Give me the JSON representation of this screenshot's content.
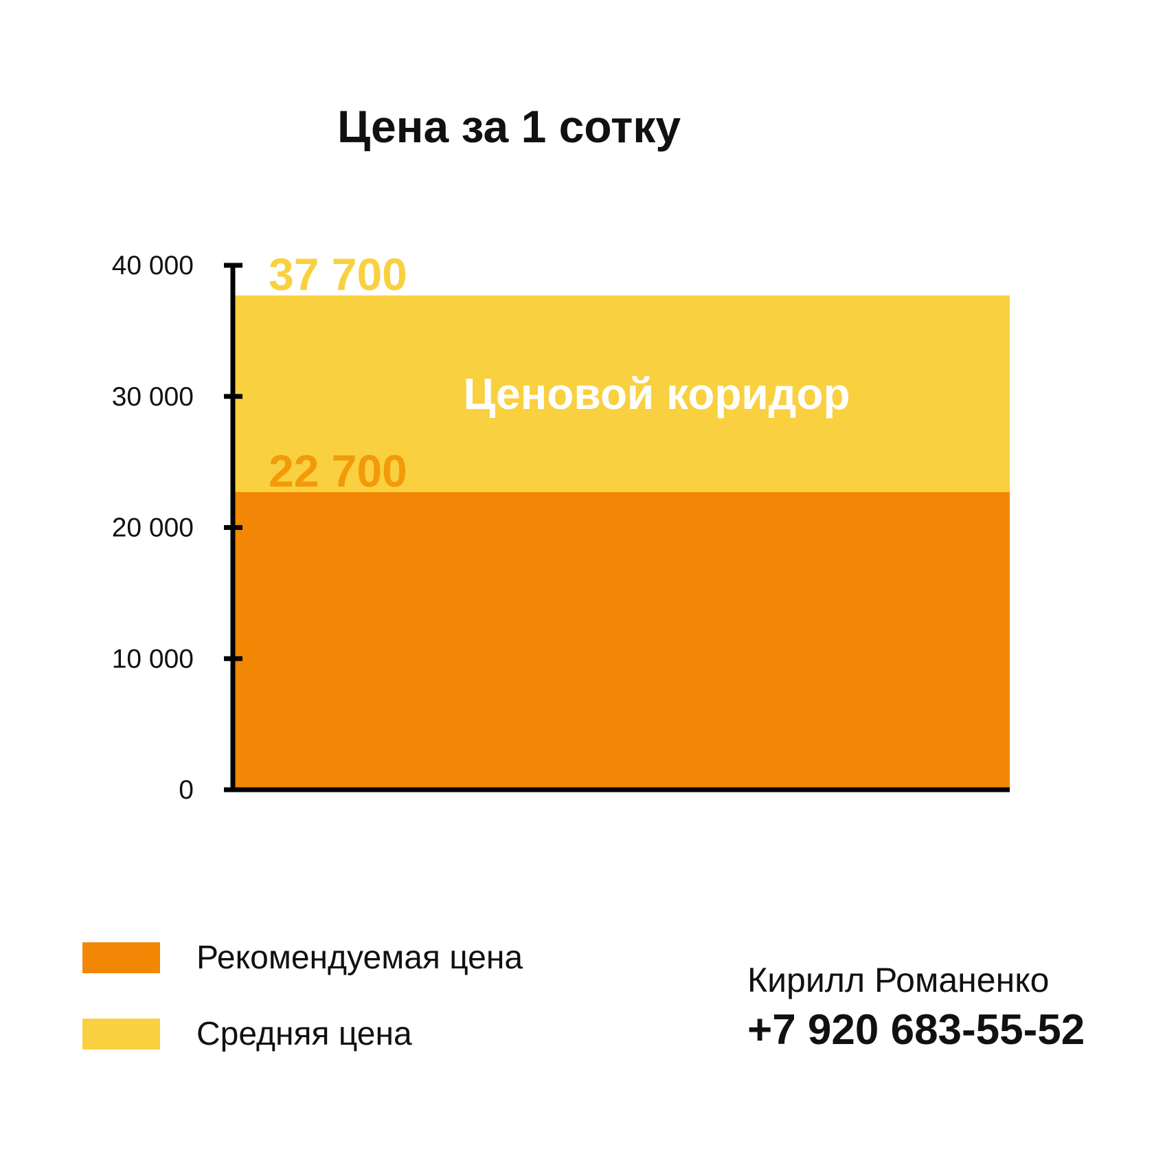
{
  "chart_data": {
    "type": "bar",
    "title": "Цена за 1 сотку",
    "series": [
      {
        "name": "Рекомендуемая цена",
        "color": "#f28705",
        "values": [
          22700
        ],
        "value_labels": [
          "22 700"
        ],
        "label_color": "#f29a0a"
      },
      {
        "name": "Средняя цена",
        "color": "#f9d03f",
        "values": [
          37700
        ],
        "value_labels": [
          "37 700"
        ],
        "label_color": "#f9d03f"
      }
    ],
    "annotation": "Ценовой коридор",
    "ylim": [
      0,
      40000
    ],
    "yticks": [
      0,
      {
        "value": 10000,
        "label": "10 000"
      },
      {
        "value": 20000,
        "label": "20 000"
      },
      {
        "value": 30000,
        "label": "30 000"
      },
      {
        "value": 40000,
        "label": "40 000"
      }
    ],
    "legend": "bottom-left"
  },
  "footer": {
    "name": "Кирилл Романенко",
    "phone": "+7 920 683-55-52"
  }
}
